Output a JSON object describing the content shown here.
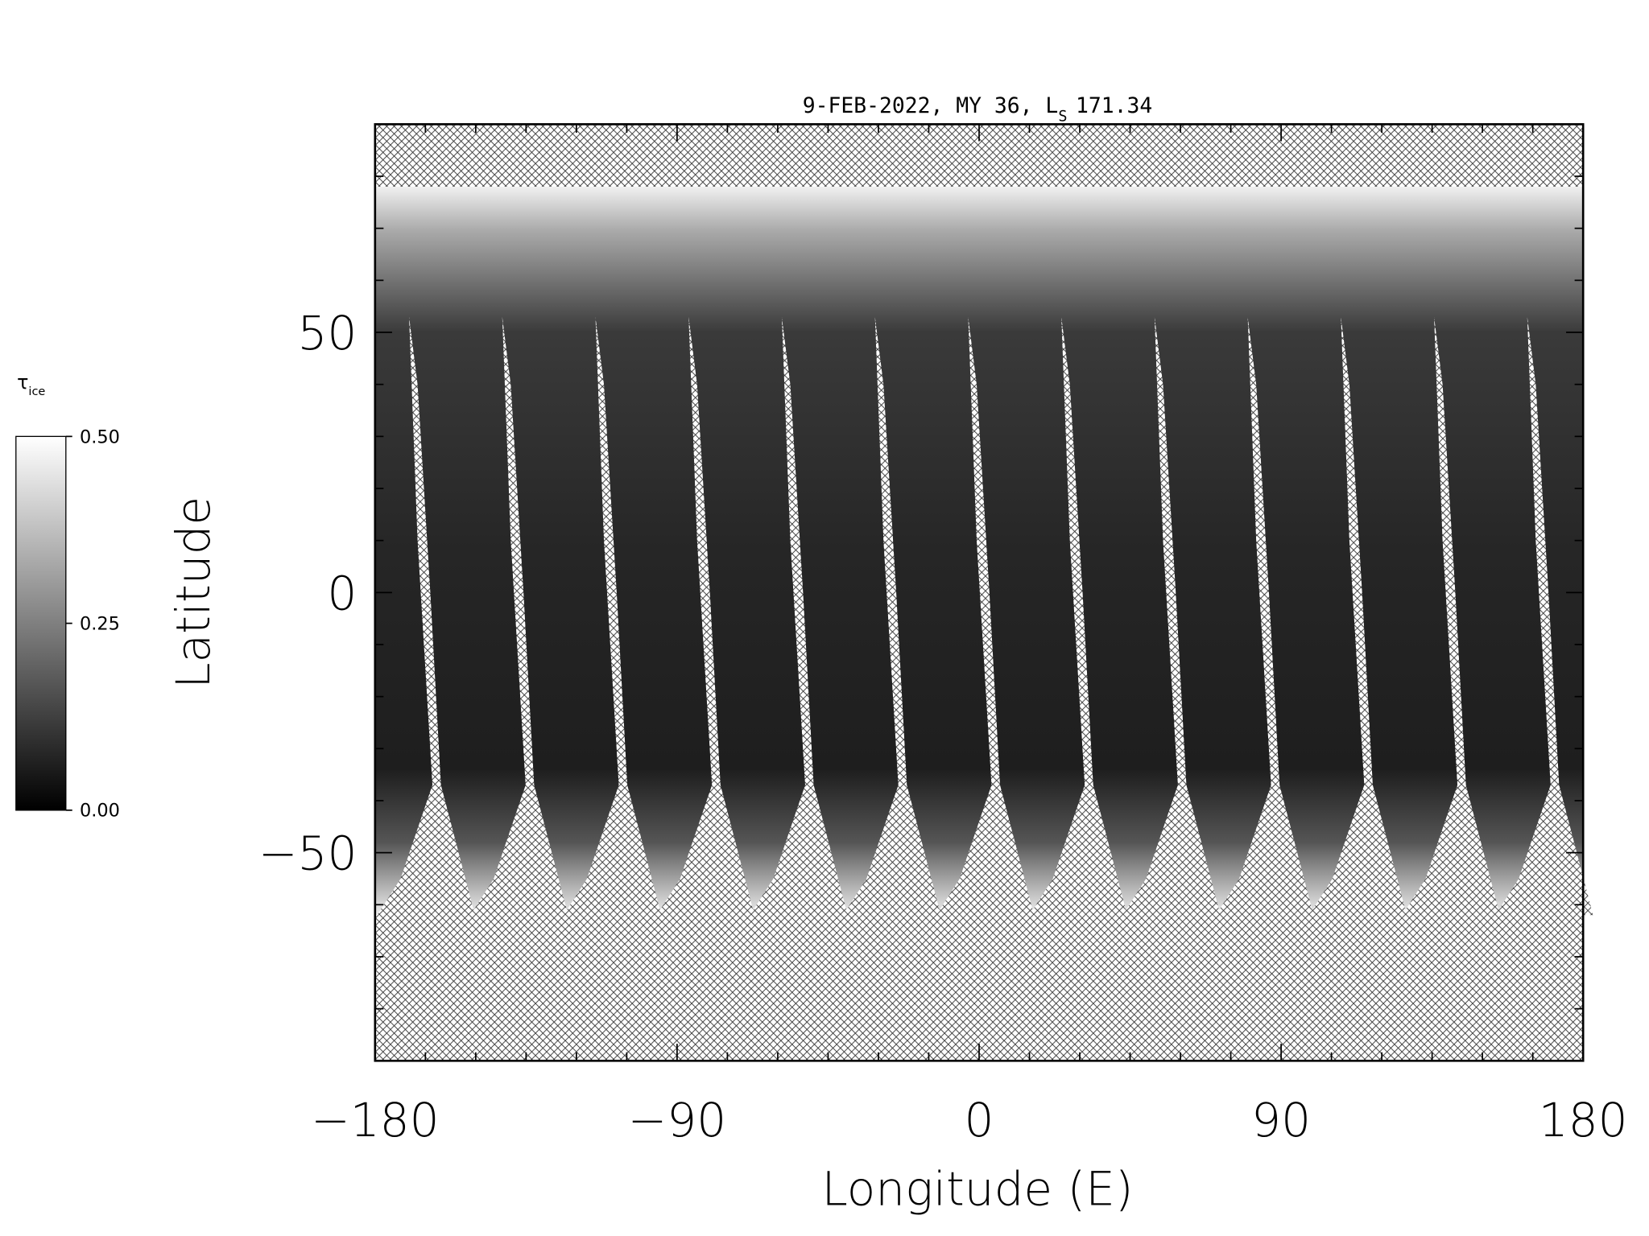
{
  "chart_data": {
    "type": "map",
    "title": "9-FEB-2022, MY 36,  L",
    "title_subscript": "S",
    "title_value": "171.34",
    "xlabel": "Longitude (E)",
    "ylabel": "Latitude",
    "xlim": [
      -180,
      180
    ],
    "ylim": [
      -90,
      90
    ],
    "xticks": [
      {
        "value": -180,
        "label": "−180"
      },
      {
        "value": -90,
        "label": "−90"
      },
      0,
      90,
      180
    ],
    "yticks": [
      {
        "value": -50,
        "label": "−50"
      },
      0,
      50
    ],
    "xminorticks": [
      -165,
      -150,
      -135,
      -120,
      -105,
      -75,
      -60,
      -45,
      -30,
      -15,
      15,
      30,
      45,
      60,
      75,
      105,
      120,
      135,
      150,
      165
    ],
    "yminorticks": [
      -80,
      -70,
      -60,
      -40,
      -30,
      -20,
      -10,
      10,
      20,
      30,
      40,
      60,
      70,
      80
    ],
    "colorbar": {
      "label": "τ",
      "label_subscript": "ice",
      "lim": [
        0,
        0.5
      ],
      "ticks": [
        {
          "value": 0,
          "label": "0.00"
        },
        {
          "value": 0.25,
          "label": "0.25"
        },
        {
          "value": 0.5,
          "label": "0.50"
        }
      ]
    }
  }
}
